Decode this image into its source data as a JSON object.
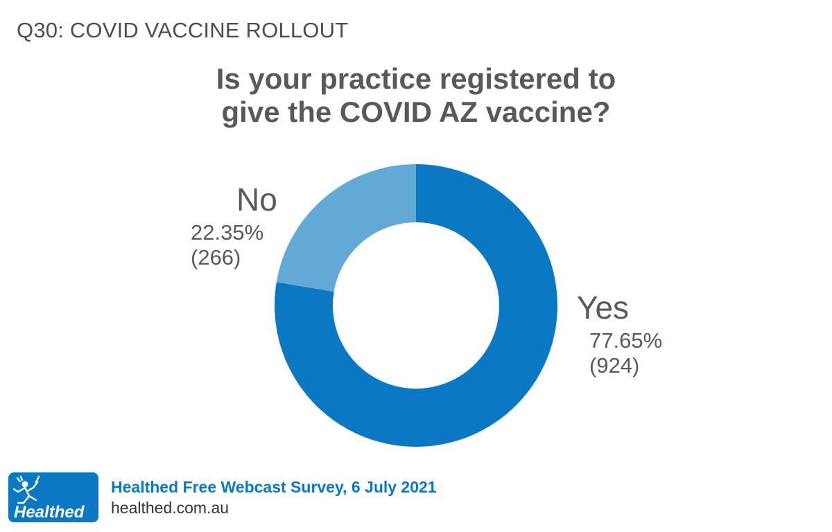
{
  "header": {
    "question_code": "Q30: COVID VACCINE ROLLOUT"
  },
  "chart_data": {
    "type": "pie",
    "variant": "donut",
    "title_lines": [
      "Is your practice registered to",
      "give the COVID AZ vaccine?"
    ],
    "slices": [
      {
        "label": "Yes",
        "percent_text": "77.65%",
        "count_text": "(924)",
        "value": 924,
        "percent": 77.65,
        "color": "#0a78c2"
      },
      {
        "label": "No",
        "percent_text": "22.35%",
        "count_text": "(266)",
        "value": 266,
        "percent": 22.35,
        "color": "#63a9d6"
      }
    ],
    "start_angle": "12 o'clock",
    "direction": "clockwise"
  },
  "footer": {
    "logo_text": "Healthed",
    "survey_name": "Healthed Free Webcast Survey, 6 July 2021",
    "url": "healthed.com.au"
  }
}
